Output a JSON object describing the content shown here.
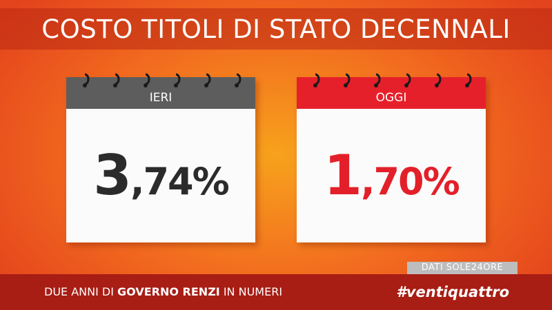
{
  "title": "COSTO TITOLI DI STATO DECENNALI",
  "cards": [
    {
      "label": "IERI",
      "integer": "3",
      "decimal": ",74%",
      "color": "#2b2b2b",
      "header_color": "#5d5d5d"
    },
    {
      "label": "OGGI",
      "integer": "1",
      "decimal": ",70%",
      "color": "#e3202a",
      "header_color": "#e6202a"
    }
  ],
  "source": "DATI SOLE24ORE",
  "footer": {
    "prefix": "DUE ANNI DI ",
    "bold": "GOVERNO RENZI",
    "suffix": " IN NUMERI",
    "hashtag": "#ventiquattro"
  }
}
